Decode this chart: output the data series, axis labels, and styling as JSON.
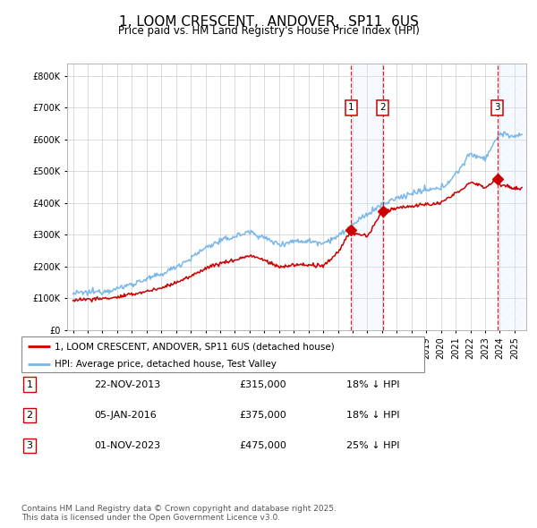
{
  "title": "1, LOOM CRESCENT,  ANDOVER,  SP11  6US",
  "subtitle": "Price paid vs. HM Land Registry's House Price Index (HPI)",
  "hpi_color": "#7ab8e8",
  "price_color": "#cc0000",
  "sale_years": [
    2013.9,
    2016.04,
    2023.84
  ],
  "sale_prices": [
    315000,
    375000,
    475000
  ],
  "sale_dates": [
    "22-NOV-2013",
    "05-JAN-2016",
    "01-NOV-2023"
  ],
  "sale_pct": [
    "18%",
    "18%",
    "25%"
  ],
  "legend_label_red": "1, LOOM CRESCENT, ANDOVER, SP11 6US (detached house)",
  "legend_label_blue": "HPI: Average price, detached house, Test Valley",
  "footer": "Contains HM Land Registry data © Crown copyright and database right 2025.\nThis data is licensed under the Open Government Licence v3.0.",
  "ylim": [
    0,
    840000
  ],
  "yticks": [
    0,
    100000,
    200000,
    300000,
    400000,
    500000,
    600000,
    700000,
    800000
  ],
  "xlim_left": 1994.6,
  "xlim_right": 2025.8,
  "background_color": "#ffffff",
  "grid_color": "#cccccc",
  "shade_color": "#ddeeff",
  "hatch_color": "#ddeeff"
}
